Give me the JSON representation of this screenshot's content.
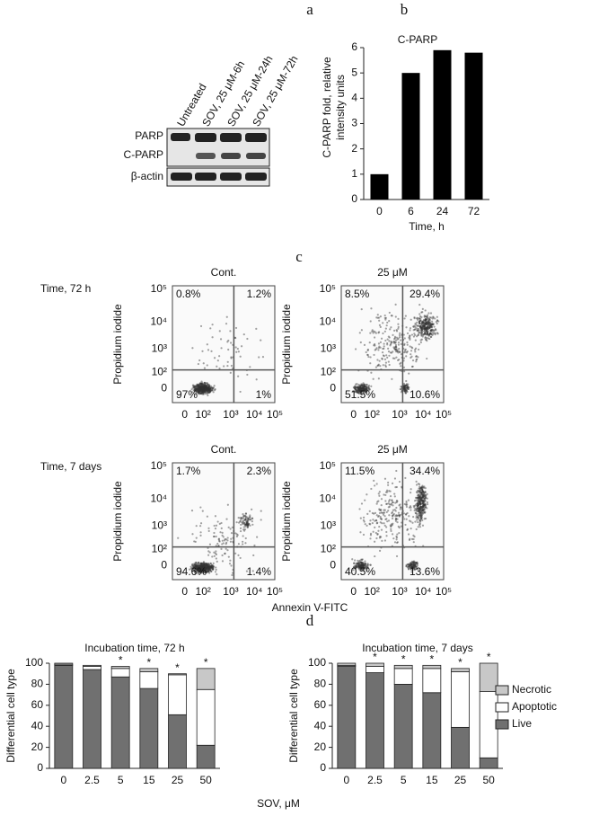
{
  "panels": [
    "a",
    "b",
    "c",
    "d"
  ],
  "blot": {
    "lanes": [
      "Untreated",
      "SOV, 25 μM-6h",
      "SOV, 25 μM-24h",
      "SOV, 25 μM-72h"
    ],
    "rows": [
      "PARP",
      "C-PARP",
      "β-actin"
    ]
  },
  "flow": {
    "xlabel": "Annexin V-FITC",
    "ylabel": "Propidium iodide",
    "xticks": [
      "0",
      "10²",
      "10³",
      "10⁴",
      "10⁵"
    ],
    "yticks": [
      "10⁵",
      "10⁴",
      "10³",
      "10²",
      "0"
    ],
    "row_labels": [
      "Time, 72 h",
      "Time, 7 days"
    ],
    "plots": [
      {
        "title": "Cont.",
        "quadrants": [
          "0.8%",
          "1.2%",
          "97%",
          "1%"
        ]
      },
      {
        "title": "25 μM",
        "quadrants": [
          "8.5%",
          "29.4%",
          "51.5%",
          "10.6%"
        ]
      },
      {
        "title": "Cont.",
        "quadrants": [
          "1.7%",
          "2.3%",
          "94.6%",
          "1.4%"
        ]
      },
      {
        "title": "25 μM",
        "quadrants": [
          "11.5%",
          "34.4%",
          "40.5%",
          "13.6%"
        ]
      }
    ]
  },
  "chart_data": [
    {
      "type": "bar",
      "title": "C-PARP",
      "ylabel": [
        "C-PARP fold, relative",
        "intensity units"
      ],
      "xlabel": "Time, h",
      "categories": [
        "0",
        "6",
        "24",
        "72"
      ],
      "values": [
        1,
        5,
        5.9,
        5.8
      ],
      "color": "#000000",
      "ylim": [
        0,
        6
      ],
      "yticks": [
        0,
        1,
        2,
        3,
        4,
        5,
        6
      ]
    },
    {
      "type": "stacked-bar",
      "title": "Incubation time, 72 h",
      "ylabel": "Differential cell type",
      "xlabel": "SOV, μM",
      "categories": [
        "0",
        "2.5",
        "5",
        "15",
        "25",
        "50"
      ],
      "series": [
        {
          "name": "Live",
          "color": "#707070",
          "values": [
            98,
            94,
            87,
            76,
            51,
            22
          ]
        },
        {
          "name": "Apoptotic",
          "color": "#ffffff",
          "values": [
            1,
            3,
            8,
            16,
            38,
            53
          ]
        },
        {
          "name": "Necrotic",
          "color": "#c8c8c8",
          "values": [
            1,
            1,
            2,
            3,
            1,
            20
          ]
        }
      ],
      "annotations": [
        {
          "text": "*",
          "category": 2
        },
        {
          "text": "*",
          "category": 3
        },
        {
          "text": "*",
          "category": 4
        },
        {
          "text": "*",
          "category": 5
        }
      ],
      "ylim": [
        0,
        100
      ],
      "yticks": [
        0,
        20,
        40,
        60,
        80,
        100
      ]
    },
    {
      "type": "stacked-bar",
      "title": "Incubation time, 7 days",
      "ylabel": "Differential cell type",
      "categories": [
        "0",
        "2.5",
        "5",
        "15",
        "25",
        "50"
      ],
      "series": [
        {
          "name": "Live",
          "color": "#707070",
          "values": [
            97,
            91,
            80,
            72,
            39,
            10
          ]
        },
        {
          "name": "Apoptotic",
          "color": "#ffffff",
          "values": [
            1,
            6,
            15,
            23,
            53,
            63
          ]
        },
        {
          "name": "Necrotic",
          "color": "#c8c8c8",
          "values": [
            2,
            3,
            3,
            3,
            3,
            27
          ]
        }
      ],
      "annotations": [
        {
          "text": "*",
          "category": 1
        },
        {
          "text": "*",
          "category": 2
        },
        {
          "text": "*",
          "category": 3
        },
        {
          "text": "*",
          "category": 4
        },
        {
          "text": "*",
          "category": 5
        }
      ],
      "legend": "right",
      "ylim": [
        0,
        100
      ],
      "yticks": [
        0,
        20,
        40,
        60,
        80,
        100
      ]
    }
  ]
}
